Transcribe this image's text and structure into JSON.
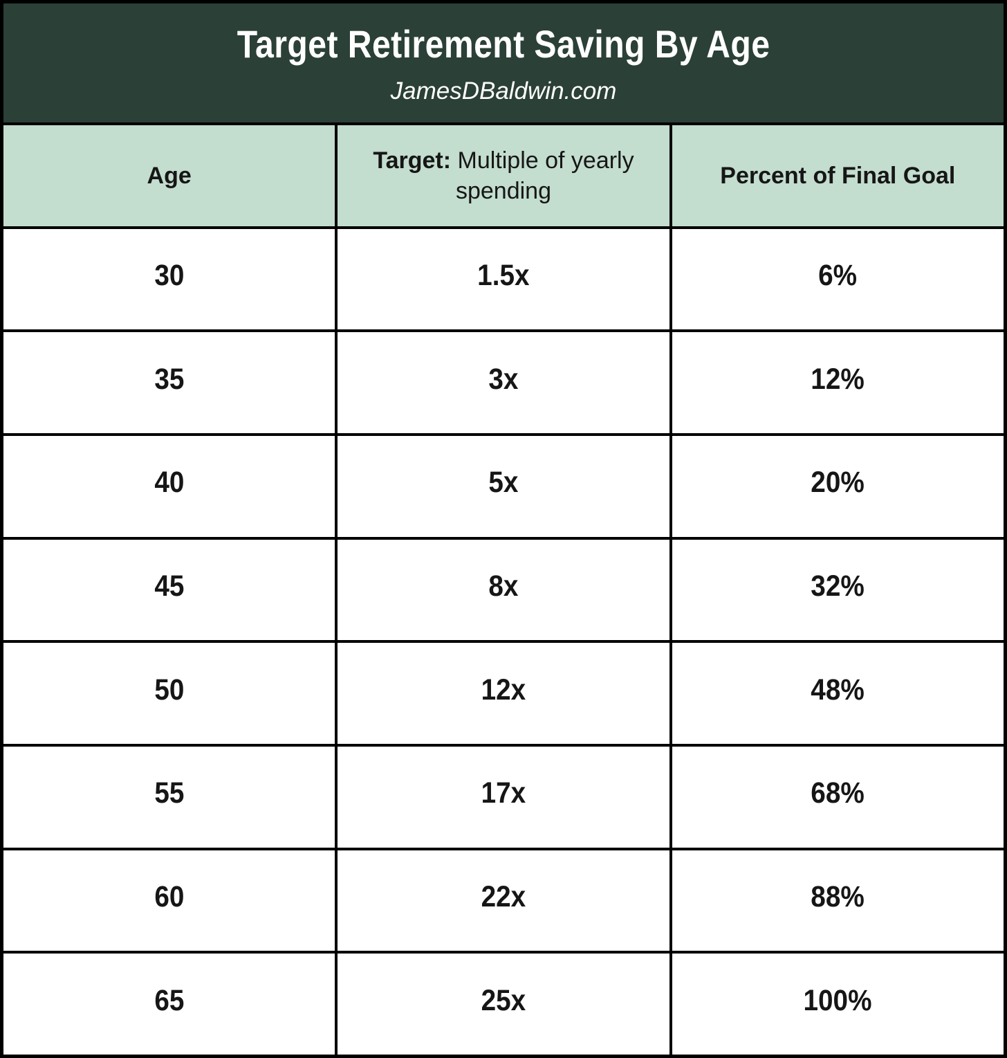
{
  "colors": {
    "border": "#000000",
    "banner_bg": "#2b4036",
    "header_bg": "#c3ddcf",
    "cell_bg": "#ffffff",
    "title_text": "#ffffff",
    "cell_text": "#161616"
  },
  "banner": {
    "title": "Target Retirement Saving By Age",
    "subtitle": "JamesDBaldwin.com"
  },
  "table": {
    "headers": {
      "age": "Age",
      "target_bold": "Target:",
      "target_rest": "Multiple of yearly spending",
      "percent": "Percent of Final Goal"
    },
    "rows": [
      {
        "age": "30",
        "multiple": "1.5x",
        "percent": "6%"
      },
      {
        "age": "35",
        "multiple": "3x",
        "percent": "12%"
      },
      {
        "age": "40",
        "multiple": "5x",
        "percent": "20%"
      },
      {
        "age": "45",
        "multiple": "8x",
        "percent": "32%"
      },
      {
        "age": "50",
        "multiple": "12x",
        "percent": "48%"
      },
      {
        "age": "55",
        "multiple": "17x",
        "percent": "68%"
      },
      {
        "age": "60",
        "multiple": "22x",
        "percent": "88%"
      },
      {
        "age": "65",
        "multiple": "25x",
        "percent": "100%"
      }
    ]
  },
  "chart_data": {
    "type": "table",
    "title": "Target Retirement Saving By Age",
    "subtitle": "JamesDBaldwin.com",
    "columns": [
      "Age",
      "Target: Multiple of yearly spending",
      "Percent of Final Goal"
    ],
    "ages": [
      30,
      35,
      40,
      45,
      50,
      55,
      60,
      65
    ],
    "target_multiple_of_yearly_spending": [
      1.5,
      3,
      5,
      8,
      12,
      17,
      22,
      25
    ],
    "percent_of_final_goal": [
      6,
      12,
      20,
      32,
      48,
      68,
      88,
      100
    ]
  }
}
